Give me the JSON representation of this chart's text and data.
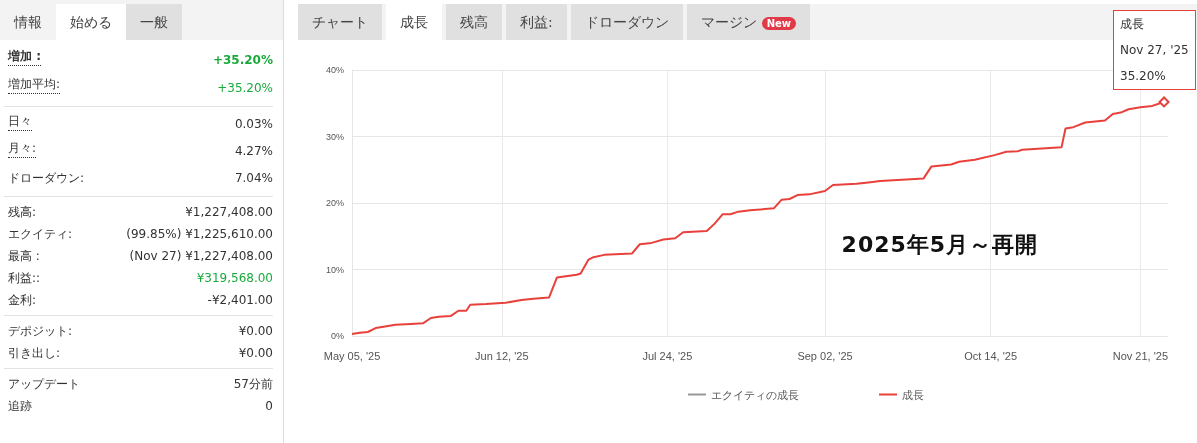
{
  "chart_data": [
    {
      "type": "other",
      "annotations": [
        "情報",
        "始める",
        "一般",
        "増加 :",
        "+35.20%",
        "増加平均:",
        "+35.20%",
        "日々",
        "0.03%",
        "月々:",
        "4.27%",
        "ドローダウン:",
        "7.04%",
        "残高:",
        "¥1,227,408.00",
        "エクイティ:",
        "(99.85%) ¥1,225,610.00",
        "最高 :",
        "(Nov 27) ¥1,227,408.00",
        "利益::",
        "¥319,568.00",
        "金利:",
        "-¥2,401.00",
        "デポジット:",
        "¥0.00",
        "引き出し:",
        "¥0.00",
        "アップデート",
        "57分前",
        "追跡",
        "0"
      ]
    },
    {
      "type": "line",
      "legend": "bottom",
      "grid": true,
      "x": [
        "2025-05-05",
        "2025-05-07",
        "2025-05-09",
        "2025-05-11",
        "2025-05-13",
        "2025-05-16",
        "2025-05-20",
        "2025-05-23",
        "2025-05-25",
        "2025-05-27",
        "2025-05-30",
        "2025-06-01",
        "2025-06-03",
        "2025-06-04",
        "2025-06-08",
        "2025-06-13",
        "2025-06-17",
        "2025-06-20",
        "2025-06-24",
        "2025-06-26",
        "2025-07-01",
        "2025-07-02",
        "2025-07-04",
        "2025-07-05",
        "2025-07-08",
        "2025-07-15",
        "2025-07-17",
        "2025-07-20",
        "2025-07-23",
        "2025-07-26",
        "2025-07-28",
        "2025-08-03",
        "2025-08-05",
        "2025-08-07",
        "2025-08-09",
        "2025-08-11",
        "2025-08-14",
        "2025-08-20",
        "2025-08-22",
        "2025-08-24",
        "2025-08-26",
        "2025-08-29",
        "2025-09-02",
        "2025-09-04",
        "2025-09-10",
        "2025-09-13",
        "2025-09-16",
        "2025-09-27",
        "2025-09-29",
        "2025-10-04",
        "2025-10-06",
        "2025-10-10",
        "2025-10-15",
        "2025-10-18",
        "2025-10-21",
        "2025-10-22",
        "2025-11-01",
        "2025-11-02",
        "2025-11-04",
        "2025-11-07",
        "2025-11-12",
        "2025-11-14",
        "2025-11-16",
        "2025-11-18",
        "2025-11-21",
        "2025-11-24",
        "2025-11-26",
        "2025-11-27"
      ],
      "series": [
        {
          "name": "エクイティの成長",
          "color": "#999999",
          "values": [
            null,
            null,
            null,
            null,
            null,
            null,
            null,
            null,
            null,
            null,
            null,
            null,
            null,
            null,
            null,
            null,
            null,
            null,
            null,
            null,
            null,
            null,
            null,
            null,
            null,
            null,
            null,
            null,
            null,
            null,
            null,
            null,
            null,
            null,
            null,
            null,
            null,
            null,
            null,
            null,
            null,
            null,
            null,
            null,
            null,
            null,
            null,
            null,
            null,
            null,
            null,
            null,
            null,
            null,
            null,
            null,
            null,
            null,
            null,
            null,
            null,
            null,
            null,
            null,
            null,
            null,
            null,
            null
          ]
        },
        {
          "name": "成長",
          "color": "#e8413c",
          "values": [
            0.3,
            0.5,
            0.6,
            1.2,
            1.4,
            1.7,
            1.8,
            1.9,
            2.7,
            2.9,
            3.0,
            3.8,
            3.8,
            4.7,
            4.8,
            5.0,
            5.4,
            5.6,
            5.8,
            8.8,
            9.2,
            9.4,
            11.5,
            11.8,
            12.2,
            12.4,
            13.8,
            14.0,
            14.5,
            14.7,
            15.6,
            15.8,
            16.9,
            18.3,
            18.3,
            18.7,
            18.9,
            19.2,
            20.5,
            20.6,
            21.2,
            21.3,
            21.8,
            22.7,
            22.9,
            23.1,
            23.3,
            23.7,
            25.5,
            25.8,
            26.2,
            26.5,
            27.2,
            27.7,
            27.8,
            28.0,
            28.4,
            31.2,
            31.4,
            32.1,
            32.4,
            33.4,
            33.6,
            34.1,
            34.4,
            34.6,
            35.0,
            35.2
          ]
        }
      ],
      "xlim": [
        "2025-05-05",
        "2025-11-28"
      ],
      "xticks": [
        {
          "value": "2025-05-05",
          "label": "May 05, '25"
        },
        {
          "value": "2025-06-12",
          "label": "Jun 12, '25"
        },
        {
          "value": "2025-07-24",
          "label": "Jul 24, '25"
        },
        {
          "value": "2025-09-02",
          "label": "Sep 02, '25"
        },
        {
          "value": "2025-10-14",
          "label": "Oct 14, '25"
        },
        {
          "value": "2025-11-21",
          "label": "Nov 21, '25"
        }
      ],
      "ylim": [
        0,
        40
      ],
      "yticks": [
        {
          "value": 0,
          "label": "0%"
        },
        {
          "value": 10,
          "label": "10%"
        },
        {
          "value": 20,
          "label": "20%"
        },
        {
          "value": 30,
          "label": "30%"
        },
        {
          "value": 40,
          "label": "40%"
        }
      ],
      "annotations": [
        "2025年5月～再開",
        {
          "text": "成長\nNov 27, '25\n35.20%",
          "x": "2025-11-27",
          "y": 35.2
        },
        "チャート",
        "成長",
        "残高",
        "利益:",
        "ドローダウン",
        "マージン",
        "New"
      ]
    }
  ]
}
